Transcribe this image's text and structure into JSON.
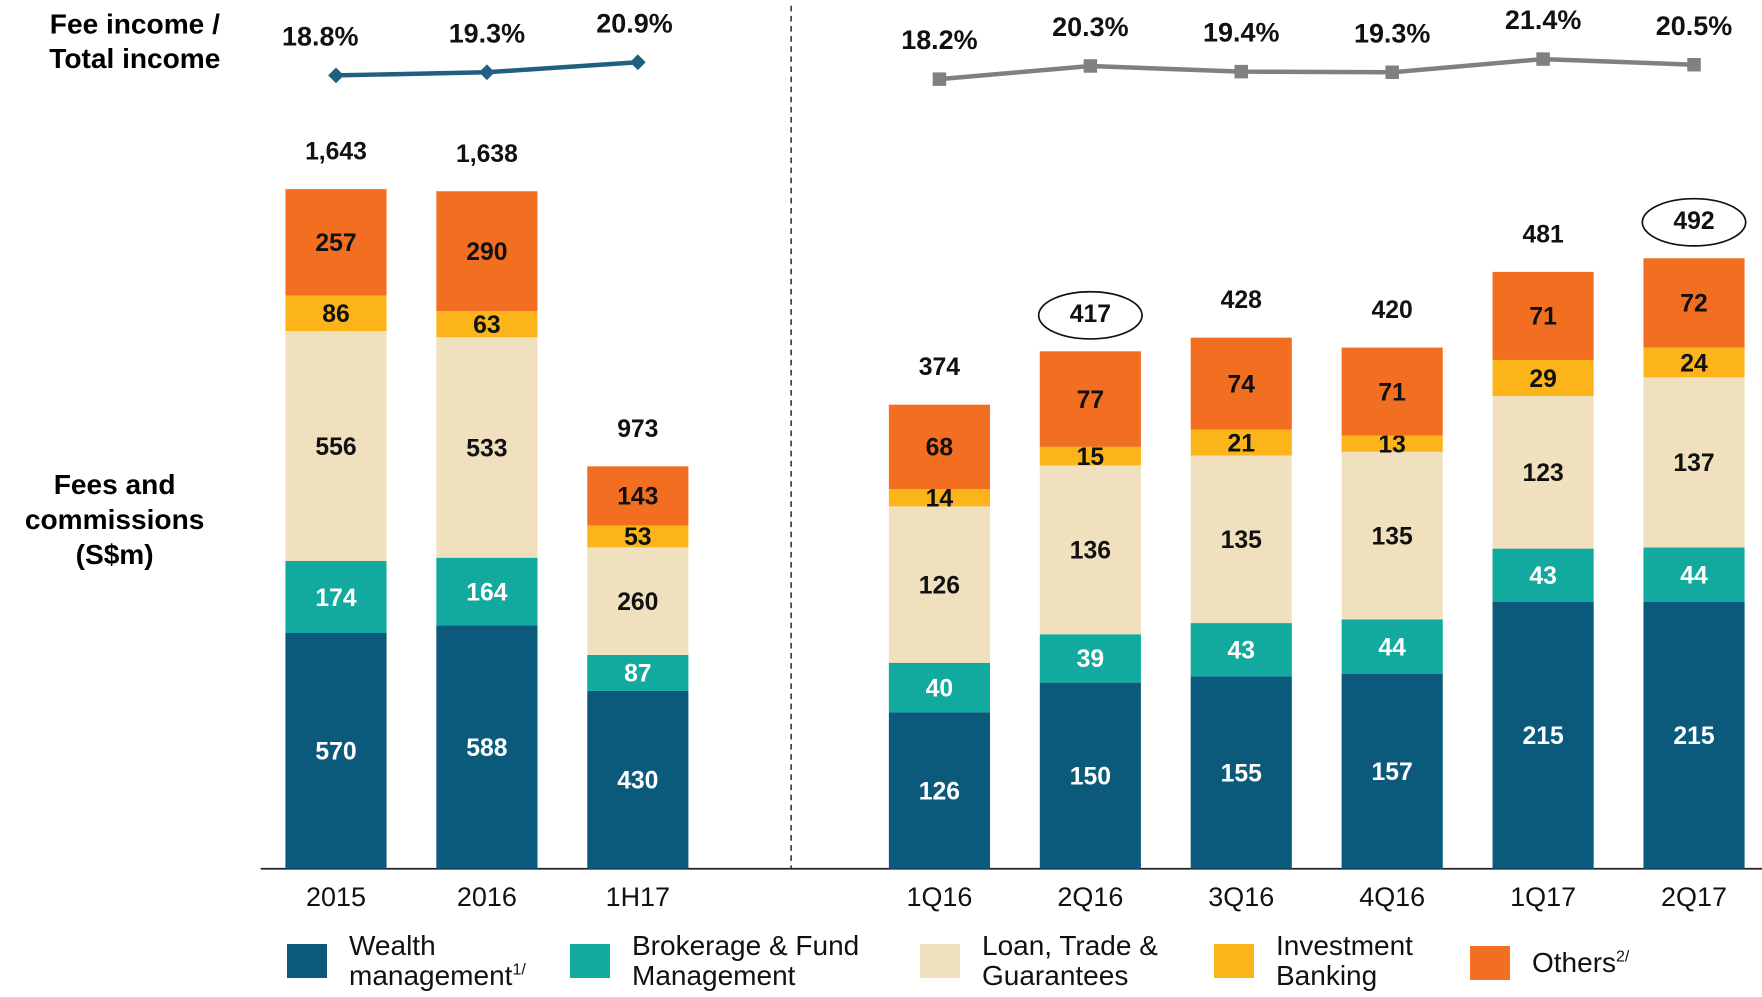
{
  "chart_data": {
    "type": "bar",
    "stacked": true,
    "line_label": [
      "Fee income /",
      "Total income"
    ],
    "y_label": [
      "Fees and",
      "commissions",
      "(S$m)"
    ],
    "series": [
      {
        "name": "Wealth management",
        "note": "1/",
        "color": "#0b5a7c"
      },
      {
        "name": "Brokerage & Fund Management",
        "color": "#12a99e"
      },
      {
        "name": "Loan, Trade & Guarantees",
        "color": "#f1e0bd"
      },
      {
        "name": "Investment Banking",
        "color": "#fbb51b"
      },
      {
        "name": "Others",
        "note": "2/",
        "color": "#f26f22"
      }
    ],
    "panels": [
      {
        "categories": [
          "2015",
          "2016",
          "1H17"
        ],
        "ylim": [
          0,
          2100
        ],
        "series": [
          {
            "values": [
              570,
              588,
              430
            ]
          },
          {
            "values": [
              174,
              164,
              87
            ]
          },
          {
            "values": [
              556,
              533,
              260
            ]
          },
          {
            "values": [
              86,
              63,
              53
            ]
          },
          {
            "values": [
              257,
              290,
              143
            ]
          }
        ],
        "totals": {
          "values": [
            1643,
            1638,
            973
          ],
          "value_labels": [
            "1,643",
            "1,638",
            "973"
          ]
        },
        "ratio": {
          "values": [
            18.8,
            19.3,
            20.9
          ],
          "value_labels": [
            "18.8%",
            "19.3%",
            "20.9%"
          ],
          "color": "#1f5f80",
          "marker": "diamond"
        }
      },
      {
        "categories": [
          "1Q16",
          "2Q16",
          "3Q16",
          "4Q16",
          "1Q17",
          "2Q17"
        ],
        "ylim": [
          0,
          700
        ],
        "highlight": [
          "2Q16",
          "2Q17"
        ],
        "series": [
          {
            "values": [
              126,
              150,
              155,
              157,
              215,
              215
            ]
          },
          {
            "values": [
              40,
              39,
              43,
              44,
              43,
              44
            ]
          },
          {
            "values": [
              126,
              136,
              135,
              135,
              123,
              137
            ]
          },
          {
            "values": [
              14,
              15,
              21,
              13,
              29,
              24
            ]
          },
          {
            "values": [
              68,
              77,
              74,
              71,
              71,
              72
            ]
          }
        ],
        "totals": {
          "values": [
            374,
            417,
            428,
            420,
            481,
            492
          ],
          "value_labels": [
            "374",
            "417",
            "428",
            "420",
            "481",
            "492"
          ]
        },
        "ratio": {
          "values": [
            18.2,
            20.3,
            19.4,
            19.3,
            21.4,
            20.5
          ],
          "value_labels": [
            "18.2%",
            "20.3%",
            "19.4%",
            "19.3%",
            "21.4%",
            "20.5%"
          ],
          "color": "#808080",
          "marker": "square"
        }
      }
    ],
    "y2lim": [
      9.3,
      30.8
    ]
  }
}
